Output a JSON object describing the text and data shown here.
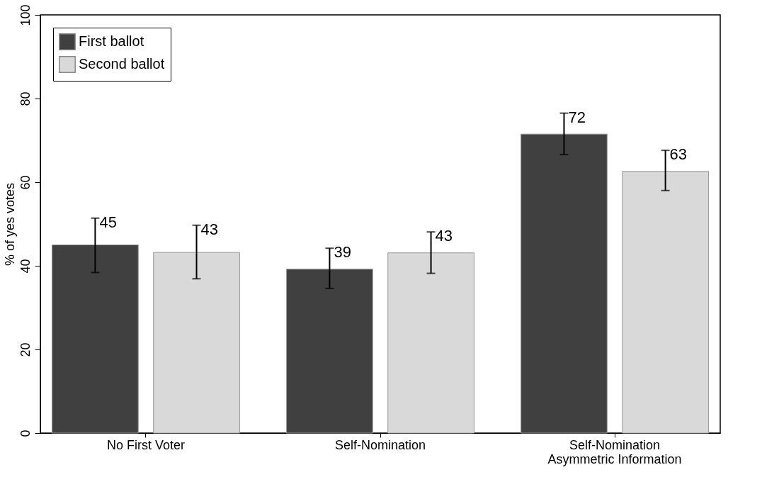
{
  "chart_data": {
    "type": "bar",
    "ylabel": "% of yes votes",
    "categories": [
      "No First Voter",
      "Self-Nomination",
      "Self-Nomination\nAsymmetric Information"
    ],
    "series": [
      {
        "name": "First ballot",
        "color": "#404040",
        "values": [
          45,
          39.2,
          71.5
        ],
        "errors": [
          [
            38.4,
            51.4
          ],
          [
            34.6,
            44.2
          ],
          [
            66.6,
            76.5
          ]
        ],
        "value_labels": [
          "45",
          "39",
          "72"
        ]
      },
      {
        "name": "Second ballot",
        "color": "#d9d9d9",
        "values": [
          43.2,
          43.1,
          62.6
        ],
        "errors": [
          [
            36.9,
            49.7
          ],
          [
            38.2,
            48.1
          ],
          [
            58.0,
            67.6
          ]
        ],
        "value_labels": [
          "43",
          "43",
          "63"
        ]
      }
    ],
    "ylim": [
      0,
      100
    ],
    "yticks": [
      0,
      20,
      40,
      60,
      80,
      100
    ],
    "grid": false,
    "legend": "top left"
  }
}
